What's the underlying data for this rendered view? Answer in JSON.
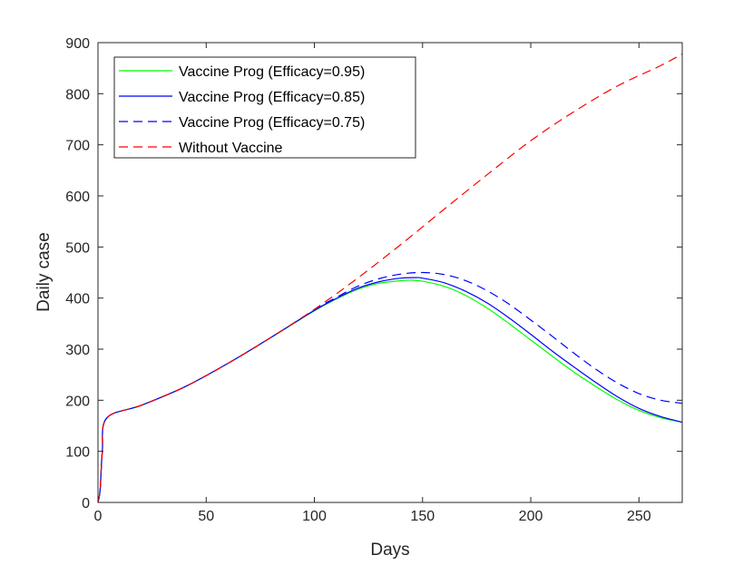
{
  "chart_data": {
    "type": "line",
    "title": "",
    "xlabel": "Days",
    "ylabel": "Daily case",
    "xlim": [
      0,
      270
    ],
    "ylim": [
      0,
      900
    ],
    "xticks": [
      0,
      50,
      100,
      150,
      200,
      250
    ],
    "yticks": [
      0,
      100,
      200,
      300,
      400,
      500,
      600,
      700,
      800,
      900
    ],
    "grid": false,
    "legend_position": "top-left",
    "series": [
      {
        "name": "Vaccine Prog (Efficacy=0.95)",
        "color": "#00ff00",
        "style": "solid",
        "x": [
          0,
          1,
          2,
          4,
          20,
          40,
          60,
          80,
          100,
          110,
          120,
          130,
          140,
          145,
          150,
          160,
          170,
          180,
          190,
          200,
          210,
          220,
          230,
          240,
          250,
          260,
          270
        ],
        "y": [
          0,
          25,
          100,
          165,
          190,
          226,
          272,
          323,
          375,
          398,
          417,
          429,
          434,
          435,
          433,
          423,
          405,
          380,
          350,
          318,
          286,
          255,
          227,
          201,
          180,
          166,
          157
        ]
      },
      {
        "name": "Vaccine Prog (Efficacy=0.85)",
        "color": "#0000ff",
        "style": "solid",
        "x": [
          0,
          1,
          2,
          4,
          20,
          40,
          60,
          80,
          100,
          110,
          120,
          130,
          140,
          147,
          150,
          160,
          170,
          180,
          190,
          200,
          210,
          220,
          230,
          240,
          250,
          260,
          270
        ],
        "y": [
          0,
          25,
          100,
          165,
          190,
          226,
          272,
          323,
          376,
          399,
          419,
          432,
          439,
          440,
          439,
          430,
          413,
          390,
          361,
          329,
          296,
          265,
          235,
          207,
          184,
          168,
          157
        ]
      },
      {
        "name": "Vaccine Prog (Efficacy=0.75)",
        "color": "#0000ff",
        "style": "dashed",
        "x": [
          0,
          1,
          2,
          4,
          20,
          40,
          60,
          80,
          100,
          110,
          120,
          130,
          140,
          150,
          160,
          170,
          180,
          190,
          200,
          210,
          220,
          230,
          240,
          250,
          260,
          270
        ],
        "y": [
          0,
          25,
          100,
          165,
          190,
          226,
          272,
          323,
          377,
          401,
          423,
          438,
          447,
          450,
          446,
          434,
          414,
          388,
          357,
          325,
          292,
          261,
          234,
          213,
          200,
          194
        ]
      },
      {
        "name": "Without Vaccine",
        "color": "#ff0000",
        "style": "dashed",
        "x": [
          0,
          1,
          2,
          4,
          20,
          40,
          60,
          80,
          100,
          120,
          140,
          160,
          180,
          200,
          220,
          240,
          260,
          270
        ],
        "y": [
          0,
          25,
          100,
          165,
          190,
          226,
          272,
          323,
          378,
          439,
          505,
          574,
          642,
          708,
          765,
          815,
          855,
          878
        ]
      }
    ]
  }
}
